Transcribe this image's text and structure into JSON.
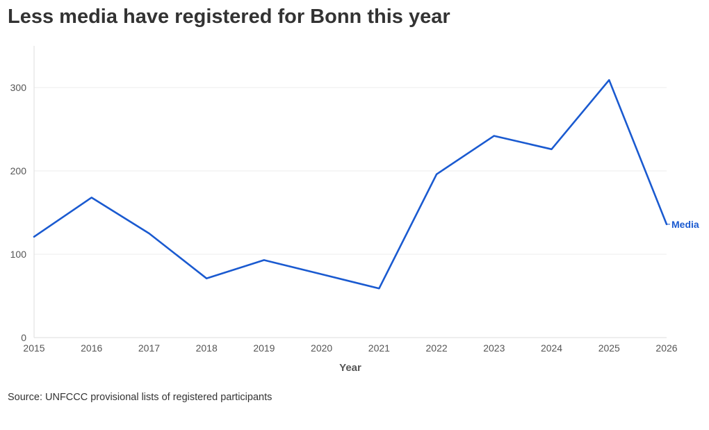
{
  "chart_data": {
    "type": "line",
    "title": "Less media have registered for Bonn this year",
    "xlabel": "Year",
    "ylabel": "",
    "x": [
      2015,
      2016,
      2017,
      2018,
      2019,
      2020,
      2021,
      2022,
      2023,
      2024,
      2025,
      2026
    ],
    "xticks": [
      "2015",
      "2016",
      "2017",
      "2018",
      "2019",
      "2020",
      "2021",
      "2022",
      "2023",
      "2024",
      "2025",
      "2026"
    ],
    "yticks": [
      "0",
      "100",
      "200",
      "300"
    ],
    "ylim": [
      0,
      350
    ],
    "grid": true,
    "series": [
      {
        "name": "Media",
        "color": "#1a5ad0",
        "values": [
          121,
          168,
          125,
          71,
          93,
          76,
          59,
          196,
          242,
          226,
          309,
          136
        ]
      }
    ],
    "source": "Source: UNFCCC provisional lists of registered participants"
  }
}
